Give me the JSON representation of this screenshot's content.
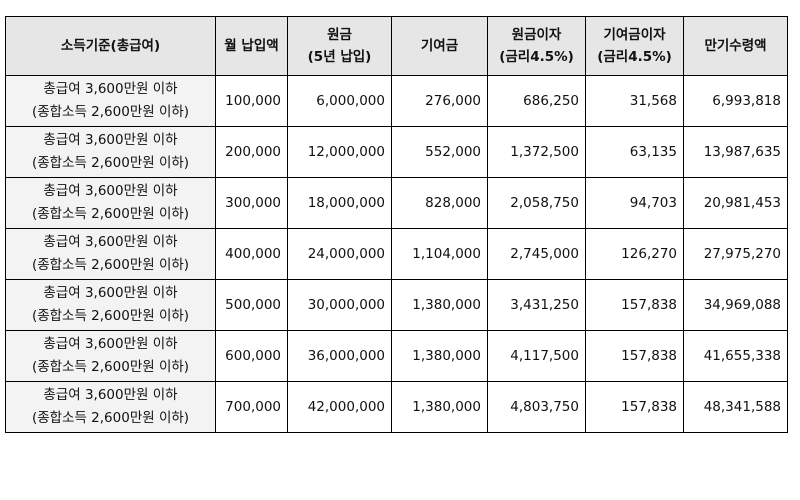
{
  "table": {
    "headers": [
      {
        "line1": "소득기준(총급여)",
        "line2": ""
      },
      {
        "line1": "월 납입액",
        "line2": ""
      },
      {
        "line1": "원금",
        "line2": "(5년 납입)"
      },
      {
        "line1": "기여금",
        "line2": ""
      },
      {
        "line1": "원금이자",
        "line2": "(금리4.5%)"
      },
      {
        "line1": "기여금이자",
        "line2": "(금리4.5%)"
      },
      {
        "line1": "만기수령액",
        "line2": ""
      }
    ],
    "rows": [
      {
        "income1": "총급여 3,600만원 이하",
        "income2": "(종합소득 2,600만원 이하)",
        "monthly": "100,000",
        "principal": "6,000,000",
        "contribution": "276,000",
        "principal_interest": "686,250",
        "contribution_interest": "31,568",
        "maturity": "6,993,818"
      },
      {
        "income1": "총급여 3,600만원 이하",
        "income2": "(종합소득 2,600만원 이하)",
        "monthly": "200,000",
        "principal": "12,000,000",
        "contribution": "552,000",
        "principal_interest": "1,372,500",
        "contribution_interest": "63,135",
        "maturity": "13,987,635"
      },
      {
        "income1": "총급여 3,600만원 이하",
        "income2": "(종합소득 2,600만원 이하)",
        "monthly": "300,000",
        "principal": "18,000,000",
        "contribution": "828,000",
        "principal_interest": "2,058,750",
        "contribution_interest": "94,703",
        "maturity": "20,981,453"
      },
      {
        "income1": "총급여 3,600만원 이하",
        "income2": "(종합소득 2,600만원 이하)",
        "monthly": "400,000",
        "principal": "24,000,000",
        "contribution": "1,104,000",
        "principal_interest": "2,745,000",
        "contribution_interest": "126,270",
        "maturity": "27,975,270"
      },
      {
        "income1": "총급여 3,600만원 이하",
        "income2": "(종합소득 2,600만원 이하)",
        "monthly": "500,000",
        "principal": "30,000,000",
        "contribution": "1,380,000",
        "principal_interest": "3,431,250",
        "contribution_interest": "157,838",
        "maturity": "34,969,088"
      },
      {
        "income1": "총급여 3,600만원 이하",
        "income2": "(종합소득 2,600만원 이하)",
        "monthly": "600,000",
        "principal": "36,000,000",
        "contribution": "1,380,000",
        "principal_interest": "4,117,500",
        "contribution_interest": "157,838",
        "maturity": "41,655,338"
      },
      {
        "income1": "총급여 3,600만원 이하",
        "income2": "(종합소득 2,600만원 이하)",
        "monthly": "700,000",
        "principal": "42,000,000",
        "contribution": "1,380,000",
        "principal_interest": "4,803,750",
        "contribution_interest": "157,838",
        "maturity": "48,341,588"
      }
    ]
  }
}
